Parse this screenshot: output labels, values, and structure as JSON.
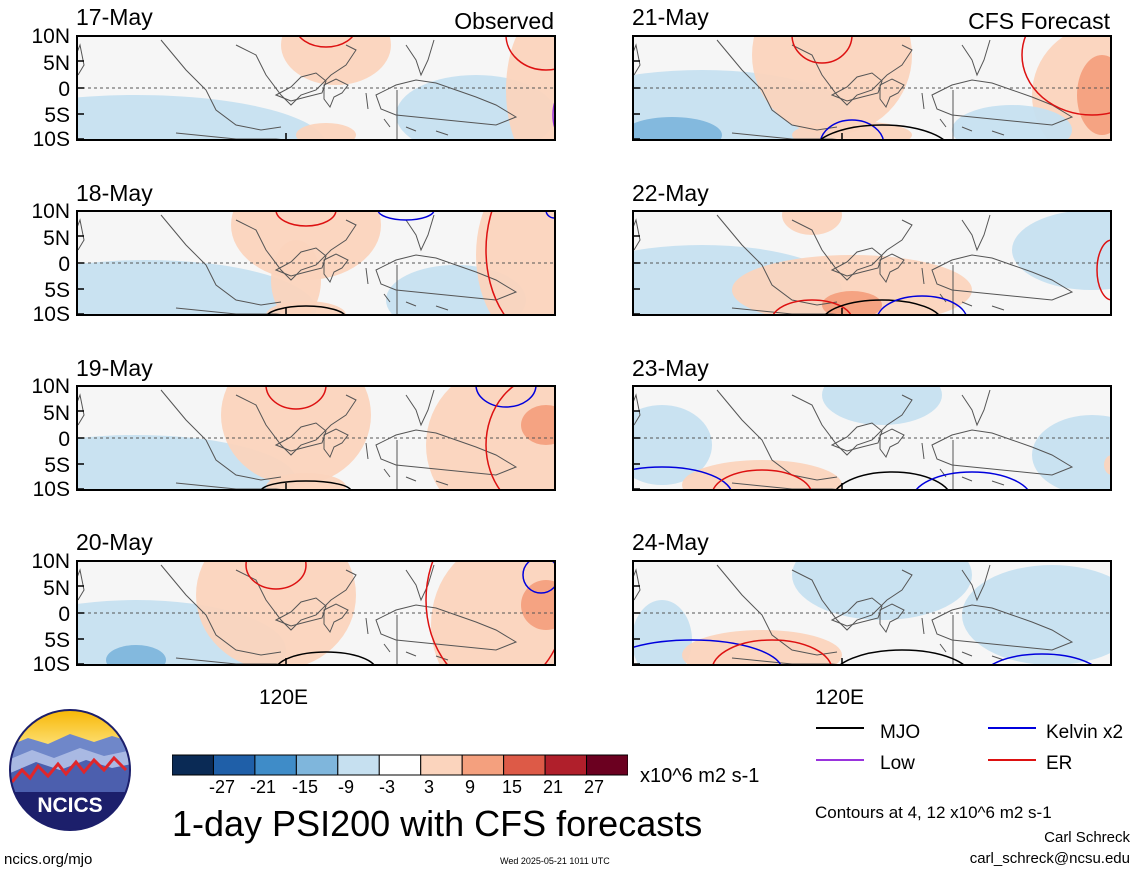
{
  "chart_data": {
    "type": "heatmap",
    "title": "1-day PSI200 with CFS forecasts",
    "units": "x10^6 m2 s-1",
    "contour_note": "Contours at 4, 12 x10^6 m2 s-1",
    "column_labels": [
      "Observed",
      "CFS Forecast"
    ],
    "lat_ticks": [
      "10N",
      "5N",
      "0",
      "5S",
      "10S"
    ],
    "lon_ticks": [
      "120E",
      "120E"
    ],
    "colorbar": {
      "labels": [
        "-27",
        "-21",
        "-15",
        "-9",
        "-3",
        "3",
        "9",
        "15",
        "21",
        "27"
      ],
      "colors": [
        "#0a2a55",
        "#1f5fa8",
        "#3f8cc8",
        "#7fb6dc",
        "#c6e0f0",
        "#ffffff",
        "#fbd4bd",
        "#f4a07e",
        "#dd5a47",
        "#b01f2b",
        "#6b0020"
      ]
    },
    "legend": [
      {
        "label": "MJO",
        "color": "#000000"
      },
      {
        "label": "Kelvin x2",
        "color": "#0000dd"
      },
      {
        "label": "Low",
        "color": "#9933dd"
      },
      {
        "label": "ER",
        "color": "#dd1111"
      }
    ],
    "panels": [
      {
        "date": "17-May",
        "column": "Observed"
      },
      {
        "date": "18-May",
        "column": "Observed"
      },
      {
        "date": "19-May",
        "column": "Observed"
      },
      {
        "date": "20-May",
        "column": "Observed"
      },
      {
        "date": "21-May",
        "column": "CFS Forecast"
      },
      {
        "date": "22-May",
        "column": "CFS Forecast"
      },
      {
        "date": "23-May",
        "column": "CFS Forecast"
      },
      {
        "date": "24-May",
        "column": "CFS Forecast"
      }
    ]
  },
  "logo": {
    "text": "NCICS"
  },
  "footer": {
    "url": "ncics.org/mjo",
    "timestamp": "Wed 2025-05-21 1011 UTC",
    "author": "Carl Schreck",
    "email": "carl_schreck@ncsu.edu"
  }
}
